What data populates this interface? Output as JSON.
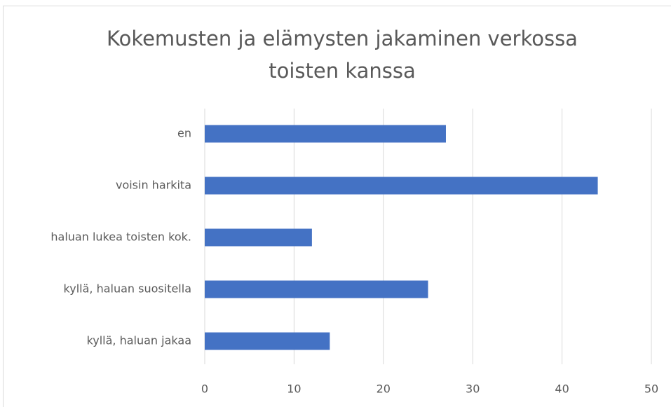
{
  "chart_data": {
    "type": "bar",
    "orientation": "horizontal",
    "title": "Kokemusten ja elämysten jakaminen verkossa toisten kanssa",
    "categories": [
      "en",
      "voisin harkita",
      "haluan lukea toisten kok.",
      "kyllä, haluan suositella",
      "kyllä, haluan jakaa"
    ],
    "values": [
      27,
      44,
      12,
      25,
      14
    ],
    "color": "#4472c4",
    "xlim": [
      0,
      50
    ],
    "xticks": [
      0,
      10,
      20,
      30,
      40,
      50
    ],
    "grid": true
  }
}
